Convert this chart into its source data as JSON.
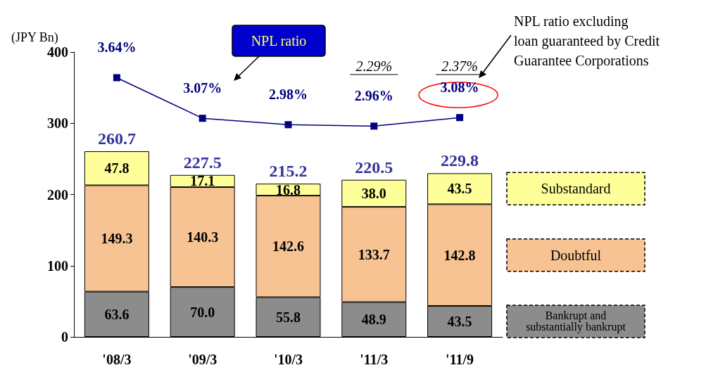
{
  "chart_data": {
    "type": "bar",
    "stacked": true,
    "ylabel": "(JPY Bn)",
    "categories": [
      "'08/3",
      "'09/3",
      "'10/3",
      "'11/3",
      "'11/9"
    ],
    "ylim": [
      0,
      400
    ],
    "yticks": [
      0,
      100,
      200,
      300,
      400
    ],
    "y2lim": [
      0,
      4
    ],
    "legend": "right",
    "marker": "square",
    "series": [
      {
        "name": "Bankrupt and substantially bankrupt",
        "color": "#8c8c8c",
        "values": [
          63.6,
          70.0,
          55.8,
          48.9,
          43.5
        ],
        "value_labels": [
          "63.6",
          "70.0",
          "55.8",
          "48.9",
          "43.5"
        ]
      },
      {
        "name": "Doubtful",
        "color": "#f7c393",
        "values": [
          149.3,
          140.3,
          142.6,
          133.7,
          142.8
        ],
        "value_labels": [
          "149.3",
          "140.3",
          "142.6",
          "133.7",
          "142.8"
        ]
      },
      {
        "name": "Substandard",
        "color": "#ffff99",
        "values": [
          47.8,
          17.1,
          16.8,
          38.0,
          43.5
        ],
        "value_labels": [
          "47.8",
          "17.1",
          "16.8",
          "38.0",
          "43.5"
        ]
      },
      {
        "name": "NPL ratio",
        "type": "line",
        "axis": "y2",
        "color": "#000080",
        "values": [
          3.64,
          3.07,
          2.98,
          2.96,
          3.08
        ],
        "value_labels": [
          "3.64%",
          "3.07%",
          "2.98%",
          "2.96%",
          "3.08%"
        ]
      }
    ],
    "totals": [
      "260.7",
      "227.5",
      "215.2",
      "220.5",
      "229.8"
    ],
    "annotations": [
      "2.29%",
      "2.37%",
      "NPL ratio excluding\nloan guaranteed by Credit\nGuarantee Corporations"
    ]
  }
}
